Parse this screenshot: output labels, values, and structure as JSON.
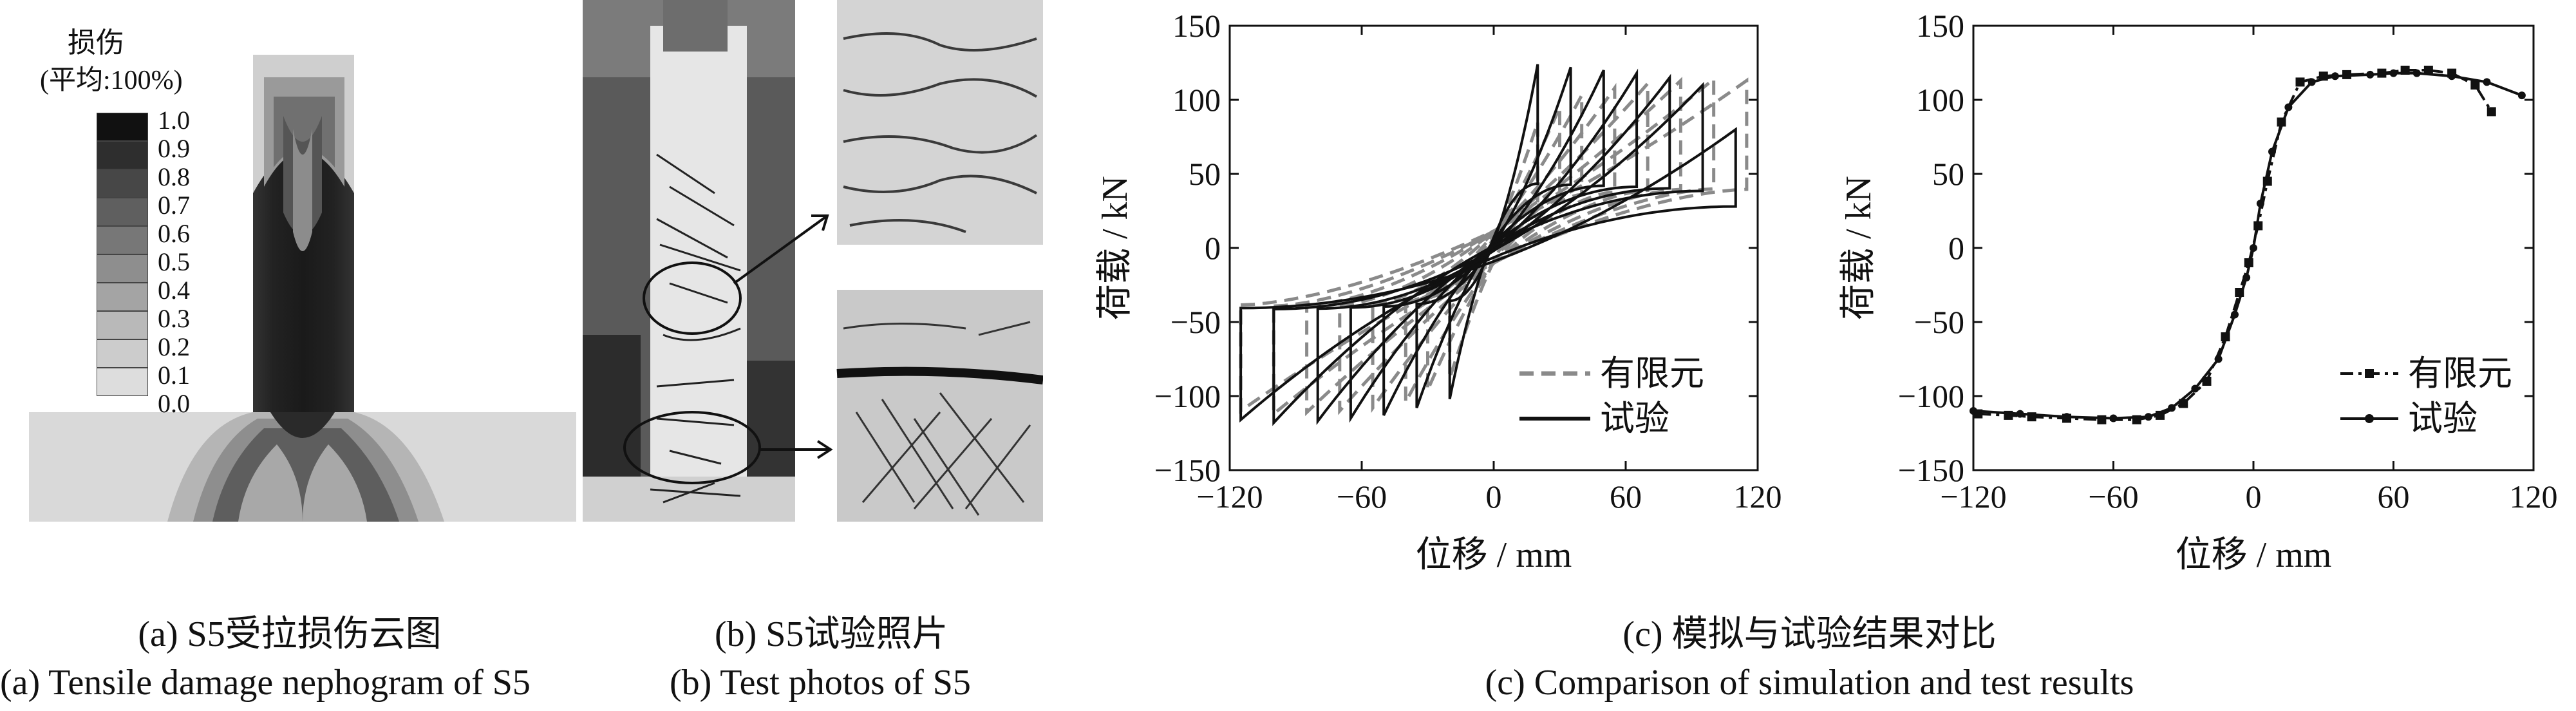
{
  "panel_a": {
    "legend_title": "损伤",
    "legend_subtitle": "(平均:100%)",
    "legend_values": [
      "1.0",
      "0.9",
      "0.8",
      "0.7",
      "0.6",
      "0.5",
      "0.4",
      "0.3",
      "0.2",
      "0.1",
      "0.0"
    ],
    "legend_colors": [
      "#111111",
      "#2e2e2e",
      "#474747",
      "#5f5f5f",
      "#777777",
      "#8e8e8e",
      "#a4a4a4",
      "#b9b9b9",
      "#cccccc",
      "#dddddd",
      "#eeeeee"
    ],
    "caption_cn": "(a)  S5受拉损伤云图",
    "caption_en": "(a)  Tensile damage nephogram of S5"
  },
  "panel_b": {
    "caption_cn": "(b)  S5试验照片",
    "caption_en": "(b)  Test photos of S5"
  },
  "panel_c": {
    "caption_cn": "(c) 模拟与试验结果对比",
    "caption_en": "(c) Comparison of simulation and test results"
  },
  "chart_data": [
    {
      "type": "line",
      "title": "",
      "xlabel": "位移 / mm",
      "ylabel": "荷载 / kN",
      "xlim": [
        -120,
        120
      ],
      "ylim": [
        -150,
        150
      ],
      "xticks": [
        -120,
        -60,
        0,
        60,
        120
      ],
      "yticks": [
        -150,
        -100,
        -50,
        0,
        50,
        100,
        150
      ],
      "legend_position": "bottom-right",
      "series": [
        {
          "name": "有限元",
          "style": "dashed",
          "color": "#8a8a8a",
          "amplitudes": [
            {
              "xmax": 20,
              "ymax": 85,
              "xmin": -20,
              "ymin": -88
            },
            {
              "xmax": 30,
              "ymax": 95,
              "xmin": -30,
              "ymin": -96
            },
            {
              "xmax": 40,
              "ymax": 103,
              "xmin": -40,
              "ymin": -104
            },
            {
              "xmax": 55,
              "ymax": 108,
              "xmin": -55,
              "ymin": -108
            },
            {
              "xmax": 70,
              "ymax": 111,
              "xmin": -70,
              "ymin": -110
            },
            {
              "xmax": 85,
              "ymax": 113,
              "xmin": -85,
              "ymin": -111
            },
            {
              "xmax": 100,
              "ymax": 114,
              "xmin": -100,
              "ymin": -112
            },
            {
              "xmax": 115,
              "ymax": 113,
              "xmin": -115,
              "ymin": -110
            }
          ]
        },
        {
          "name": "试验",
          "style": "solid",
          "color": "#111111",
          "amplitudes": [
            {
              "xmax": 20,
              "ymax": 124,
              "xmin": -20,
              "ymin": -102
            },
            {
              "xmax": 35,
              "ymax": 122,
              "xmin": -35,
              "ymin": -108
            },
            {
              "xmax": 50,
              "ymax": 120,
              "xmin": -50,
              "ymin": -113
            },
            {
              "xmax": 65,
              "ymax": 118,
              "xmin": -65,
              "ymin": -115
            },
            {
              "xmax": 80,
              "ymax": 115,
              "xmin": -80,
              "ymin": -117
            },
            {
              "xmax": 95,
              "ymax": 110,
              "xmin": -100,
              "ymin": -118
            },
            {
              "xmax": 110,
              "ymax": 80,
              "xmin": -115,
              "ymin": -116
            }
          ]
        }
      ]
    },
    {
      "type": "line",
      "title": "",
      "xlabel": "位移 / mm",
      "ylabel": "荷载 / kN",
      "xlim": [
        -120,
        120
      ],
      "ylim": [
        -150,
        150
      ],
      "xticks": [
        -120,
        -60,
        0,
        60,
        120
      ],
      "yticks": [
        -150,
        -100,
        -50,
        0,
        50,
        100,
        150
      ],
      "legend_position": "bottom-right",
      "series": [
        {
          "name": "有限元",
          "style": "dashdot",
          "marker": "square",
          "x": [
            -118,
            -105,
            -95,
            -80,
            -65,
            -50,
            -40,
            -30,
            -20,
            -12,
            -6,
            -2,
            2,
            6,
            12,
            20,
            30,
            40,
            55,
            65,
            75,
            85,
            95,
            102
          ],
          "y": [
            -112,
            -113,
            -114,
            -115,
            -116,
            -116,
            -113,
            -105,
            -90,
            -60,
            -30,
            -10,
            15,
            45,
            85,
            112,
            116,
            117,
            118,
            120,
            120,
            118,
            110,
            92
          ]
        },
        {
          "name": "试验",
          "style": "solid",
          "marker": "circle",
          "x": [
            -120,
            -100,
            -80,
            -60,
            -45,
            -35,
            -25,
            -15,
            -8,
            -3,
            0,
            3,
            8,
            15,
            25,
            35,
            50,
            60,
            70,
            85,
            100,
            115
          ],
          "y": [
            -110,
            -112,
            -114,
            -115,
            -114,
            -108,
            -95,
            -75,
            -45,
            -20,
            0,
            30,
            65,
            95,
            112,
            116,
            117,
            118,
            118,
            116,
            112,
            103
          ]
        }
      ]
    }
  ]
}
